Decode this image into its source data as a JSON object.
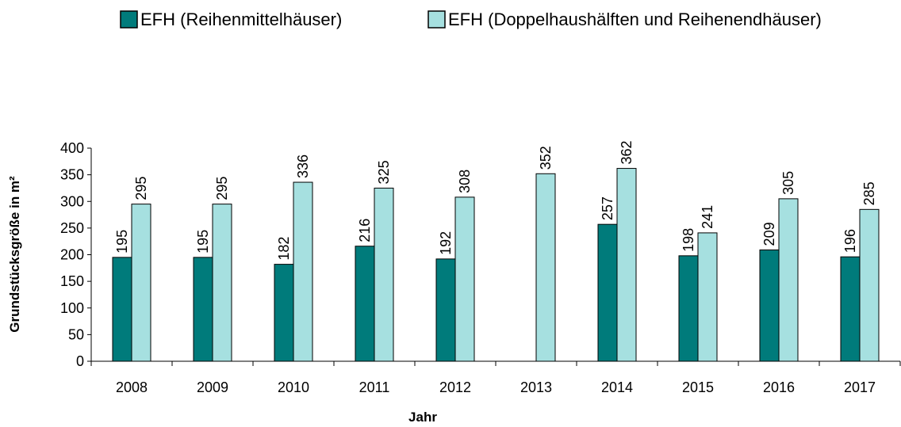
{
  "chart_data": {
    "type": "bar",
    "x_label": "Jahr",
    "y_label": "Grundstücksgröße in m²",
    "categories": [
      "2008",
      "2009",
      "2010",
      "2011",
      "2012",
      "2013",
      "2014",
      "2015",
      "2016",
      "2017"
    ],
    "series": [
      {
        "name": "EFH (Reihenmittelhäuser)",
        "color": "#007b7b",
        "values": [
          195,
          195,
          182,
          216,
          192,
          null,
          257,
          198,
          209,
          196
        ]
      },
      {
        "name": "EFH (Doppelhaushälften und Reihenendhäuser)",
        "color": "#a6e0e0",
        "values": [
          295,
          295,
          336,
          325,
          308,
          352,
          362,
          241,
          305,
          285
        ]
      }
    ],
    "ylim": [
      0,
      400
    ],
    "yticks": [
      0,
      50,
      100,
      150,
      200,
      250,
      300,
      350,
      400
    ],
    "legend": "top",
    "grid": false
  }
}
